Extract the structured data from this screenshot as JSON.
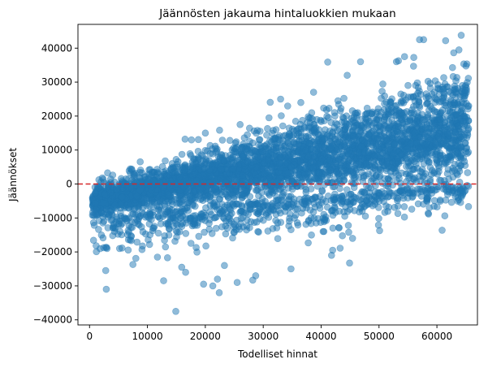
{
  "chart_data": {
    "type": "scatter",
    "title": "Jäännösten jakauma hintaluokkien mukaan",
    "xlabel": "Todelliset hinnat",
    "ylabel": "Jäännökset",
    "xlim": [
      -2000,
      67000
    ],
    "ylim": [
      -41500,
      47000
    ],
    "x_ticks": [
      0,
      10000,
      20000,
      30000,
      40000,
      50000,
      60000
    ],
    "x_tick_labels": [
      "0",
      "10000",
      "20000",
      "30000",
      "40000",
      "50000",
      "60000"
    ],
    "y_ticks": [
      -40000,
      -30000,
      -20000,
      -10000,
      0,
      10000,
      20000,
      30000,
      40000
    ],
    "y_tick_labels": [
      "−40000",
      "−30000",
      "−20000",
      "−10000",
      "0",
      "10000",
      "20000",
      "30000",
      "40000"
    ],
    "grid": false,
    "point_color": "#1f77b4",
    "point_alpha": 0.5,
    "reference_line": {
      "y": 0,
      "style": "dashed",
      "color": "#d62728"
    },
    "density_band": {
      "x_start": 500,
      "x_end": 65500,
      "lower_at_x_start": -9000,
      "lower_at_x_end": 0,
      "upper_at_x_start": -1500,
      "upper_at_x_end": 30000
    },
    "outliers": [
      [
        2800,
        -25500
      ],
      [
        2900,
        -31000
      ],
      [
        12800,
        -28500
      ],
      [
        14900,
        -37500
      ],
      [
        19700,
        -29500
      ],
      [
        21300,
        -30000
      ],
      [
        22400,
        -32000
      ],
      [
        22100,
        -28000
      ],
      [
        25500,
        -29000
      ],
      [
        28200,
        -28300
      ],
      [
        23300,
        -24000
      ],
      [
        7500,
        -23700
      ],
      [
        8000,
        -21900
      ],
      [
        16600,
        -26000
      ],
      [
        33000,
        25000
      ],
      [
        57000,
        42500
      ],
      [
        57700,
        42500
      ],
      [
        61500,
        42200
      ],
      [
        64200,
        43800
      ],
      [
        53000,
        36000
      ],
      [
        46800,
        36000
      ],
      [
        54400,
        37500
      ],
      [
        63800,
        39500
      ],
      [
        38700,
        27000
      ],
      [
        42000,
        -19500
      ],
      [
        41800,
        -21000
      ],
      [
        34800,
        -25000
      ],
      [
        28700,
        -27000
      ],
      [
        4300,
        -14000
      ],
      [
        5200,
        -19000
      ],
      [
        31000,
        19500
      ],
      [
        36500,
        24000
      ],
      [
        44500,
        32000
      ],
      [
        26000,
        17500
      ],
      [
        20000,
        15000
      ],
      [
        16500,
        13200
      ]
    ]
  }
}
